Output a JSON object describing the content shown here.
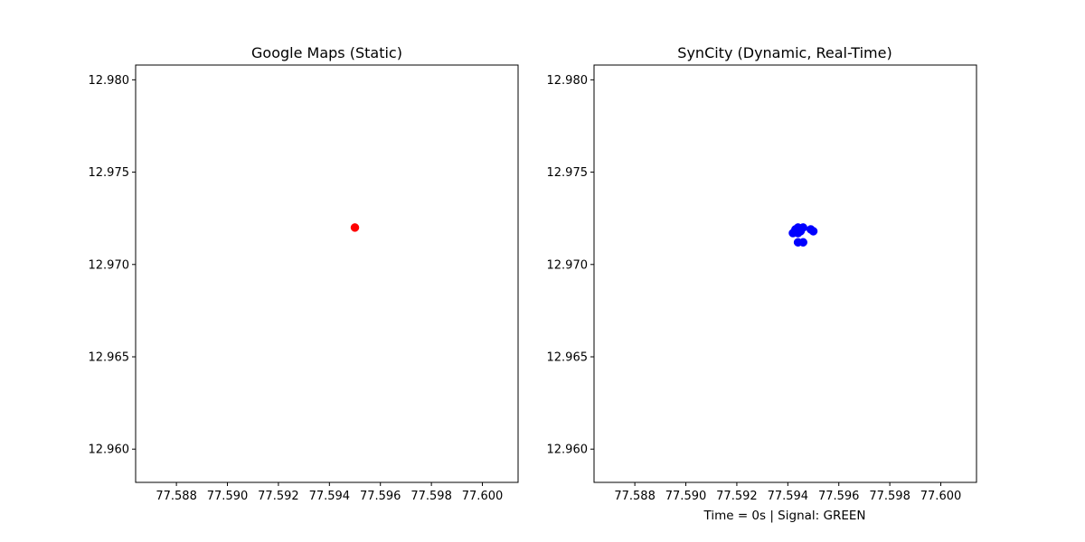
{
  "chart_data": [
    {
      "type": "scatter",
      "title": "Google Maps (Static)",
      "xlabel": "",
      "ylabel": "",
      "xlim": [
        77.5864,
        77.6014
      ],
      "ylim": [
        12.9582,
        12.9808
      ],
      "xticks": [
        77.588,
        77.59,
        77.592,
        77.594,
        77.596,
        77.598,
        77.6
      ],
      "xtick_labels": [
        "77.588",
        "77.590",
        "77.592",
        "77.594",
        "77.596",
        "77.598",
        "77.600"
      ],
      "yticks": [
        12.96,
        12.965,
        12.97,
        12.975,
        12.98
      ],
      "ytick_labels": [
        "12.960",
        "12.965",
        "12.970",
        "12.975",
        "12.980"
      ],
      "grid": false,
      "series": [
        {
          "color": "#ff0000",
          "points": [
            {
              "x": 77.595,
              "y": 12.972
            }
          ]
        }
      ]
    },
    {
      "type": "scatter",
      "title": "SynCity (Dynamic, Real-Time)",
      "xlabel": "Time = 0s | Signal: GREEN",
      "ylabel": "",
      "xlim": [
        77.5864,
        77.6014
      ],
      "ylim": [
        12.9582,
        12.9808
      ],
      "xticks": [
        77.588,
        77.59,
        77.592,
        77.594,
        77.596,
        77.598,
        77.6
      ],
      "xtick_labels": [
        "77.588",
        "77.590",
        "77.592",
        "77.594",
        "77.596",
        "77.598",
        "77.600"
      ],
      "yticks": [
        12.96,
        12.965,
        12.97,
        12.975,
        12.98
      ],
      "ytick_labels": [
        "12.960",
        "12.965",
        "12.970",
        "12.975",
        "12.980"
      ],
      "grid": false,
      "series": [
        {
          "color": "#0000ff",
          "points": [
            {
              "x": 77.5942,
              "y": 12.9717
            },
            {
              "x": 77.5943,
              "y": 12.9719
            },
            {
              "x": 77.5944,
              "y": 12.972
            },
            {
              "x": 77.5945,
              "y": 12.9718
            },
            {
              "x": 77.5946,
              "y": 12.972
            },
            {
              "x": 77.5944,
              "y": 12.9717
            },
            {
              "x": 77.5949,
              "y": 12.9719
            },
            {
              "x": 77.595,
              "y": 12.9718
            },
            {
              "x": 77.5944,
              "y": 12.9712
            },
            {
              "x": 77.5946,
              "y": 12.9712
            }
          ]
        }
      ]
    }
  ]
}
